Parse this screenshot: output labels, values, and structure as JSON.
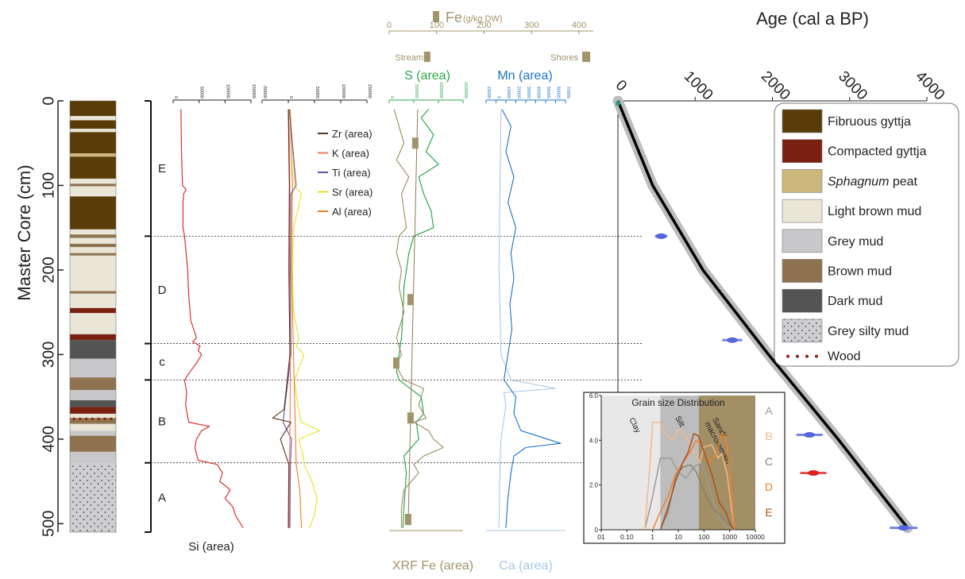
{
  "chart_data": [
    {
      "type": "table",
      "ylabel": "Master Core (cm)",
      "yticks": [
        "0",
        "100",
        "200",
        "300",
        "400",
        "500"
      ],
      "units": [
        {
          "label": "E",
          "top": 0,
          "bottom": 160
        },
        {
          "label": "D",
          "top": 160,
          "bottom": 287
        },
        {
          "label": "c",
          "top": 287,
          "bottom": 330
        },
        {
          "label": "B",
          "top": 330,
          "bottom": 428
        },
        {
          "label": "A",
          "top": 428,
          "bottom": 510
        }
      ],
      "layers": [
        {
          "top": 0,
          "bottom": 18,
          "type": "fib"
        },
        {
          "top": 18,
          "bottom": 23,
          "type": "light"
        },
        {
          "top": 23,
          "bottom": 33,
          "type": "fib"
        },
        {
          "top": 33,
          "bottom": 37,
          "type": "light"
        },
        {
          "top": 37,
          "bottom": 62,
          "type": "fib"
        },
        {
          "top": 62,
          "bottom": 66,
          "type": "sph"
        },
        {
          "top": 66,
          "bottom": 92,
          "type": "fib"
        },
        {
          "top": 92,
          "bottom": 98,
          "type": "light"
        },
        {
          "top": 98,
          "bottom": 101,
          "type": "brown"
        },
        {
          "top": 101,
          "bottom": 113,
          "type": "light"
        },
        {
          "top": 113,
          "bottom": 152,
          "type": "fib"
        },
        {
          "top": 152,
          "bottom": 158,
          "type": "light"
        },
        {
          "top": 158,
          "bottom": 162,
          "type": "brown"
        },
        {
          "top": 162,
          "bottom": 169,
          "type": "light"
        },
        {
          "top": 169,
          "bottom": 173,
          "type": "brown"
        },
        {
          "top": 173,
          "bottom": 180,
          "type": "light"
        },
        {
          "top": 180,
          "bottom": 183,
          "type": "brown"
        },
        {
          "top": 183,
          "bottom": 225,
          "type": "light"
        },
        {
          "top": 225,
          "bottom": 228,
          "type": "brown"
        },
        {
          "top": 228,
          "bottom": 245,
          "type": "light"
        },
        {
          "top": 245,
          "bottom": 251,
          "type": "comp"
        },
        {
          "top": 251,
          "bottom": 276,
          "type": "light"
        },
        {
          "top": 276,
          "bottom": 283,
          "type": "comp"
        },
        {
          "top": 283,
          "bottom": 305,
          "type": "dark"
        },
        {
          "top": 305,
          "bottom": 327,
          "type": "grey"
        },
        {
          "top": 327,
          "bottom": 342,
          "type": "brown"
        },
        {
          "top": 342,
          "bottom": 354,
          "type": "grey"
        },
        {
          "top": 354,
          "bottom": 362,
          "type": "dark"
        },
        {
          "top": 362,
          "bottom": 370,
          "type": "comp"
        },
        {
          "top": 370,
          "bottom": 375,
          "type": "light"
        },
        {
          "top": 375,
          "bottom": 382,
          "type": "brown"
        },
        {
          "top": 382,
          "bottom": 390,
          "type": "light"
        },
        {
          "top": 390,
          "bottom": 396,
          "type": "grey"
        },
        {
          "top": 396,
          "bottom": 415,
          "type": "brown"
        },
        {
          "top": 415,
          "bottom": 428,
          "type": "grey"
        },
        {
          "top": 428,
          "bottom": 510,
          "type": "silt"
        }
      ],
      "wood_depth": 376
    },
    {
      "type": "line",
      "xlabel": "Si (area)",
      "xticks": [
        "0",
        "50000",
        "100000",
        "150000"
      ],
      "xlim": [
        0,
        150000
      ],
      "series": [
        {
          "name": "Si (area)",
          "color": "#d9312b",
          "depth": [
            10,
            60,
            100,
            105,
            110,
            120,
            150,
            160,
            200,
            230,
            260,
            280,
            285,
            290,
            295,
            300,
            310,
            320,
            330,
            345,
            360,
            380,
            385,
            390,
            400,
            410,
            425,
            430,
            440,
            450,
            460,
            470,
            480,
            490,
            500,
            505
          ],
          "values": [
            15000,
            16000,
            18000,
            25000,
            20000,
            19000,
            19000,
            22000,
            28000,
            30000,
            34000,
            45000,
            38000,
            52000,
            48000,
            55000,
            45000,
            33000,
            22000,
            26000,
            24000,
            30000,
            70000,
            55000,
            45000,
            42000,
            48000,
            85000,
            95000,
            90000,
            110000,
            100000,
            115000,
            120000,
            130000,
            135000
          ]
        }
      ]
    },
    {
      "type": "line",
      "xticks": [
        "-50000",
        "0",
        "50000",
        "100000",
        "150000"
      ],
      "xlim": [
        -50000,
        150000
      ],
      "series": [
        {
          "name": "Zr (area)",
          "color": "#5a3219",
          "depth": [
            10,
            100,
            200,
            300,
            365,
            375,
            380,
            400,
            430,
            505
          ],
          "values": [
            0,
            2000,
            1000,
            3000,
            -8000,
            -30000,
            5000,
            -15000,
            1000,
            0
          ]
        },
        {
          "name": "K (area)",
          "color": "#ef7b61",
          "depth": [
            10,
            100,
            200,
            300,
            400,
            430,
            505
          ],
          "values": [
            1000,
            3000,
            2000,
            4000,
            3000,
            2000,
            1500
          ]
        },
        {
          "name": "Ti (area)",
          "color": "#6a4fa0",
          "depth": [
            10,
            100,
            110,
            200,
            300,
            380,
            400,
            430,
            505
          ],
          "values": [
            2000,
            15000,
            5000,
            4000,
            5000,
            -10000,
            6000,
            4000,
            3000
          ]
        },
        {
          "name": "Sr (area)",
          "color": "#e8e21f",
          "depth": [
            10,
            100,
            110,
            150,
            200,
            250,
            280,
            290,
            300,
            330,
            360,
            380,
            390,
            400,
            420,
            430,
            450,
            470,
            490,
            505
          ],
          "values": [
            4000,
            12000,
            25000,
            10000,
            8000,
            10000,
            20000,
            15000,
            30000,
            12000,
            18000,
            25000,
            60000,
            20000,
            28000,
            30000,
            45000,
            55000,
            50000,
            40000
          ]
        },
        {
          "name": "Al (area)",
          "color": "#f07c28",
          "depth": [
            10,
            100,
            200,
            300,
            400,
            430,
            460,
            505
          ],
          "values": [
            3000,
            8000,
            6000,
            10000,
            14000,
            15000,
            22000,
            25000
          ]
        }
      ]
    },
    {
      "type": "line",
      "title": "S (area)",
      "xlabel": "XRF Fe (area)",
      "xticks": [
        "0",
        "500000",
        "1000000",
        "1500000"
      ],
      "xlim": [
        0,
        1500000
      ],
      "series": [
        {
          "name": "S (area)",
          "color": "#2da84a",
          "depth": [
            10,
            20,
            40,
            60,
            75,
            90,
            110,
            130,
            150,
            160,
            180,
            200,
            220,
            250,
            280,
            300,
            320,
            330,
            350,
            370,
            380,
            400,
            420,
            440,
            480,
            505
          ],
          "values": [
            800000,
            650000,
            900000,
            750000,
            1000000,
            600000,
            700000,
            850000,
            900000,
            500000,
            400000,
            350000,
            300000,
            280000,
            250000,
            200000,
            150000,
            200000,
            650000,
            700000,
            550000,
            600000,
            300000,
            350000,
            300000,
            280000
          ]
        },
        {
          "name": "XRF Fe (area)",
          "color": "#a1946a",
          "depth": [
            10,
            30,
            50,
            70,
            90,
            110,
            130,
            150,
            160,
            180,
            200,
            220,
            250,
            280,
            300,
            310,
            320,
            330,
            340,
            360,
            375,
            380,
            390,
            400,
            410,
            420,
            430,
            440,
            460,
            480,
            505
          ],
          "values": [
            100000,
            200000,
            300000,
            150000,
            400000,
            250000,
            300000,
            350000,
            200000,
            150000,
            250000,
            200000,
            300000,
            150000,
            250000,
            150000,
            200000,
            300000,
            700000,
            600000,
            750000,
            500000,
            800000,
            900000,
            1100000,
            700000,
            500000,
            600000,
            300000,
            250000,
            250000
          ]
        }
      ],
      "fe_top_axis": {
        "title": "Fe",
        "unit": "(g/kg DW)",
        "xticks": [
          "0",
          "100",
          "200",
          "300",
          "400"
        ],
        "xlim": [
          0,
          430
        ],
        "stream_label": "Stream",
        "shores_label": "Shores",
        "stream": 80,
        "shores": 415
      },
      "fe_markers": [
        {
          "depth": 50,
          "value": 55
        },
        {
          "depth": 235,
          "value": 45
        },
        {
          "depth": 310,
          "value": 15
        },
        {
          "depth": 375,
          "value": 45
        },
        {
          "depth": 495,
          "value": 40
        }
      ],
      "fe_fit": {
        "depth": [
          10,
          500
        ],
        "values": [
          60,
          40
        ]
      }
    },
    {
      "type": "line",
      "title": "Mn (area)",
      "xlabel": "Ca (area)",
      "xticks": [
        "-10000",
        "0",
        "10000",
        "20000",
        "30000",
        "40000",
        "50000",
        "60000",
        "70000"
      ],
      "xlim": [
        -10000,
        70000
      ],
      "series": [
        {
          "name": "Ca (area)",
          "color": "#a8c8e8",
          "depth": [
            10,
            100,
            200,
            300,
            330,
            340,
            345,
            360,
            400,
            430,
            505
          ],
          "values": [
            5000,
            4000,
            3000,
            5000,
            15000,
            60000,
            8000,
            10000,
            5000,
            4000,
            3000
          ]
        },
        {
          "name": "Mn (area)",
          "color": "#1a73c8",
          "depth": [
            10,
            30,
            60,
            90,
            120,
            150,
            180,
            210,
            240,
            270,
            300,
            330,
            350,
            370,
            390,
            405,
            410,
            420,
            440,
            470,
            505
          ],
          "values": [
            6000,
            15000,
            10000,
            18000,
            12000,
            20000,
            15000,
            18000,
            14000,
            16000,
            12000,
            8000,
            20000,
            18000,
            25000,
            65000,
            30000,
            18000,
            15000,
            12000,
            10000
          ]
        }
      ]
    },
    {
      "type": "scatter",
      "title": "Age (cal a BP)",
      "xticks": [
        "0",
        "1000",
        "2000",
        "3000",
        "4000"
      ],
      "xlim": [
        0,
        4000
      ],
      "ylim": [
        0,
        510
      ],
      "age_model": {
        "depth": [
          0,
          100,
          200,
          300,
          400,
          505
        ],
        "values": [
          0,
          450,
          1100,
          1950,
          2850,
          3750
        ]
      },
      "dates": [
        {
          "depth": 160,
          "age": 560,
          "err": 80,
          "color": "#5566dd"
        },
        {
          "depth": 283,
          "age": 1480,
          "err": 130,
          "color": "#5566dd"
        },
        {
          "depth": 395,
          "age": 2480,
          "err": 170,
          "color": "#5566dd"
        },
        {
          "depth": 440,
          "age": 2530,
          "err": 170,
          "color": "#dd2222"
        },
        {
          "depth": 505,
          "age": 3700,
          "err": 180,
          "color": "#5566dd"
        }
      ],
      "legend": [
        {
          "label": "Fibruous gyttja",
          "type": "fib"
        },
        {
          "label": "Compacted gyttja",
          "type": "comp"
        },
        {
          "label": "Sphagnum",
          "suffix": " peat",
          "type": "sph"
        },
        {
          "label": "Light brown mud",
          "type": "light"
        },
        {
          "label": "Grey mud",
          "type": "grey"
        },
        {
          "label": "Brown mud",
          "type": "brown"
        },
        {
          "label": "Dark mud",
          "type": "dark"
        },
        {
          "label": "Grey silty mud",
          "type": "silt"
        },
        {
          "label": "Wood",
          "type": "wood"
        }
      ]
    },
    {
      "type": "line",
      "title": "Grain size Distribution",
      "xticks": [
        "01",
        "0.10",
        "1",
        "10",
        "100",
        "1000",
        "10000"
      ],
      "yticks": [
        "0",
        "2.0",
        "4.0",
        "6.0"
      ],
      "xlim_log": [
        -2,
        4
      ],
      "ylim": [
        0,
        6
      ],
      "zones": [
        "Clay",
        "Silt",
        "Sand/macroremain"
      ],
      "series": [
        {
          "name": "A",
          "color": "#9a9a9a",
          "x": [
            0.5,
            1,
            2,
            5,
            10,
            20,
            40,
            80,
            150,
            300,
            600,
            1500
          ],
          "values": [
            0,
            1.5,
            3.2,
            3.2,
            2.6,
            2.3,
            2.8,
            3.0,
            2.0,
            0.8,
            0.2,
            0
          ]
        },
        {
          "name": "B",
          "color": "#f7b785",
          "x": [
            0.5,
            0.8,
            1,
            2,
            3,
            6,
            10,
            20,
            40,
            70,
            100,
            200,
            350,
            500,
            800,
            1500
          ],
          "values": [
            0,
            3.0,
            4.8,
            4.8,
            4.3,
            4.0,
            4.5,
            4.2,
            3.5,
            3.0,
            3.7,
            3.8,
            3.2,
            3.4,
            2.5,
            0
          ]
        },
        {
          "name": "C",
          "color": "#8a8070",
          "x": [
            2,
            4,
            8,
            15,
            30,
            50,
            80,
            150,
            300,
            600,
            1000,
            1500
          ],
          "values": [
            0,
            0.8,
            2.4,
            2.8,
            2.9,
            2.6,
            2.0,
            1.3,
            0.8,
            0.5,
            0.2,
            0
          ]
        },
        {
          "name": "D",
          "color": "#f08030",
          "x": [
            1,
            2,
            4,
            8,
            15,
            30,
            50,
            80,
            150,
            300,
            500,
            700,
            1000,
            1500
          ],
          "values": [
            0,
            0.8,
            1.5,
            2.5,
            3.0,
            3.5,
            4.0,
            3.8,
            3.0,
            3.4,
            4.3,
            4.1,
            2.8,
            0
          ]
        },
        {
          "name": "E",
          "color": "#a85020",
          "x": [
            2,
            4,
            8,
            15,
            25,
            40,
            60,
            100,
            200,
            400,
            700,
            1000,
            1500
          ],
          "values": [
            0,
            1.0,
            2.2,
            3.0,
            3.5,
            4.3,
            4.2,
            3.5,
            2.5,
            1.2,
            0.8,
            0.3,
            0
          ]
        }
      ]
    }
  ]
}
